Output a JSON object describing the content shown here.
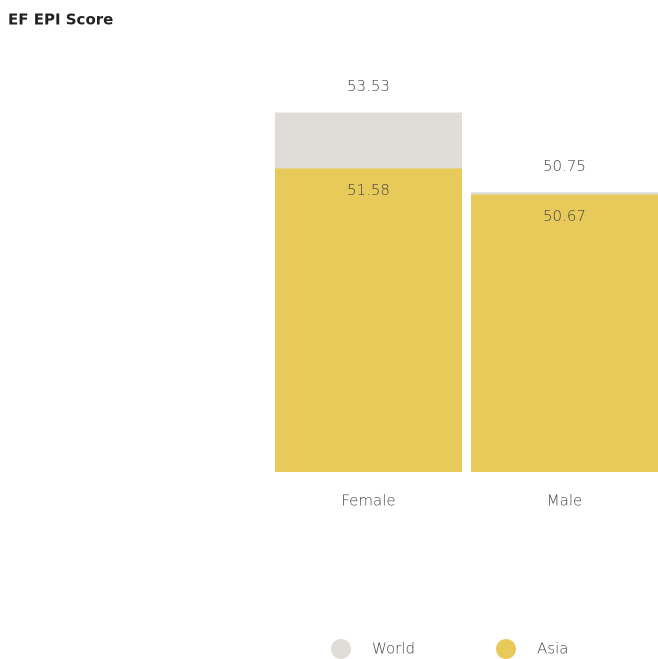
{
  "chart_data": {
    "type": "overlapping_bar",
    "title": "EF EPI Score",
    "categories": [
      "Female",
      "Male"
    ],
    "series": [
      {
        "name": "World",
        "color": "#e0ddd8",
        "values": [
          53.53,
          50.75
        ]
      },
      {
        "name": "Asia",
        "color": "#e8ca5a",
        "values": [
          51.58,
          50.67
        ]
      }
    ],
    "ylim": [
      41,
      54
    ],
    "legend": "bottom"
  }
}
